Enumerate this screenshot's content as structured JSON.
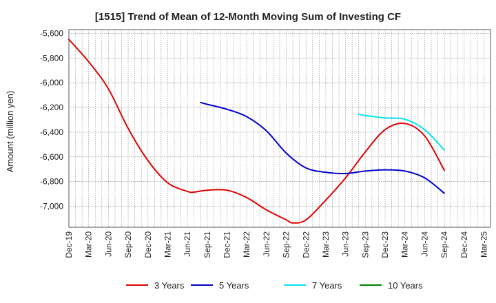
{
  "chart_data": {
    "type": "line",
    "title": "[1515]  Trend of Mean of 12-Month Moving Sum of Investing CF",
    "ylabel": "Amount (million yen)",
    "xlabel": "",
    "ylim": [
      -7170,
      -5570
    ],
    "yticks": [
      -5600,
      -5800,
      -6000,
      -6200,
      -6400,
      -6600,
      -6800,
      -7000
    ],
    "ytick_labels": [
      "-5,600",
      "-5,800",
      "-6,000",
      "-6,200",
      "-6,400",
      "-6,600",
      "-6,800",
      "-7,000"
    ],
    "x_start": "Dec-19",
    "x_count": 64,
    "xtick_labels": [
      "Dec-19",
      "Mar-20",
      "Jun-20",
      "Sep-20",
      "Dec-20",
      "Mar-21",
      "Jun-21",
      "Sep-21",
      "Dec-21",
      "Mar-22",
      "Jun-22",
      "Sep-22",
      "Dec-22",
      "Mar-23",
      "Jun-23",
      "Sep-23",
      "Dec-23",
      "Mar-24",
      "Jun-24",
      "Sep-24",
      "Dec-24",
      "Mar-25"
    ],
    "grid": true,
    "legend_position": "bottom",
    "series": [
      {
        "name": "3 Years",
        "color": "#e00000",
        "x": [
          "Dec-19",
          "Mar-20",
          "Jun-20",
          "Sep-20",
          "Dec-20",
          "Mar-21",
          "Jun-21",
          "Jul-21",
          "Sep-21",
          "Dec-21",
          "Mar-22",
          "Jun-22",
          "Sep-22",
          "Oct-22",
          "Dec-22",
          "Mar-23",
          "Jun-23",
          "Sep-23",
          "Dec-23",
          "Mar-24",
          "Jun-24",
          "Sep-24"
        ],
        "values": [
          -5650,
          -5830,
          -6050,
          -6370,
          -6630,
          -6810,
          -6880,
          -6885,
          -6870,
          -6870,
          -6930,
          -7030,
          -7110,
          -7135,
          -7110,
          -6950,
          -6770,
          -6560,
          -6380,
          -6330,
          -6430,
          -6710
        ]
      },
      {
        "name": "5 Years",
        "color": "#0000cc",
        "x": [
          "Aug-21",
          "Sep-21",
          "Dec-21",
          "Mar-22",
          "Jun-22",
          "Sep-22",
          "Dec-22",
          "Mar-23",
          "Jun-23",
          "Sep-23",
          "Dec-23",
          "Mar-24",
          "Jun-24",
          "Sep-24"
        ],
        "values": [
          -6160,
          -6175,
          -6215,
          -6275,
          -6390,
          -6570,
          -6690,
          -6725,
          -6735,
          -6715,
          -6705,
          -6715,
          -6770,
          -6895
        ]
      },
      {
        "name": "7 Years",
        "color": "#00e5ee",
        "x": [
          "Aug-23",
          "Sep-23",
          "Dec-23",
          "Mar-24",
          "Jun-24",
          "Sep-24"
        ],
        "values": [
          -6255,
          -6265,
          -6285,
          -6295,
          -6380,
          -6545
        ]
      },
      {
        "name": "10 Years",
        "color": "#008000",
        "x": [],
        "values": []
      }
    ]
  }
}
